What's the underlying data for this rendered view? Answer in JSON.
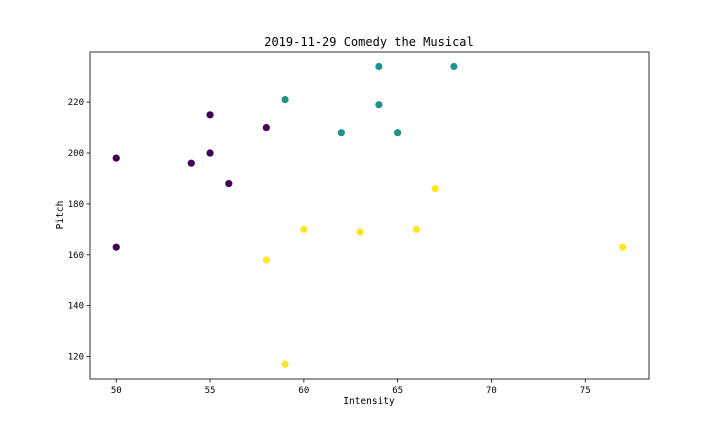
{
  "chart_data": {
    "type": "scatter",
    "title": "2019-11-29 Comedy the Musical",
    "xlabel": "Intensity",
    "ylabel": "Pitch",
    "xlim": [
      48.6,
      78.4
    ],
    "ylim": [
      111.2,
      239.7
    ],
    "xticks": [
      50,
      55,
      60,
      65,
      70,
      75
    ],
    "yticks": [
      120,
      140,
      160,
      180,
      200,
      220
    ],
    "grid": false,
    "legend": "none",
    "series": [
      {
        "color": "#440154",
        "points": [
          [
            50,
            198
          ],
          [
            50,
            163
          ],
          [
            54,
            196
          ],
          [
            55,
            215
          ],
          [
            55,
            200
          ],
          [
            56,
            188
          ],
          [
            58,
            210
          ]
        ]
      },
      {
        "color": "#21918c",
        "points": [
          [
            59,
            221
          ],
          [
            62,
            208
          ],
          [
            64,
            234
          ],
          [
            64,
            219
          ],
          [
            65,
            208
          ],
          [
            68,
            234
          ]
        ]
      },
      {
        "color": "#fde725",
        "points": [
          [
            58,
            158
          ],
          [
            59,
            117
          ],
          [
            60,
            170
          ],
          [
            63,
            169
          ],
          [
            66,
            170
          ],
          [
            67,
            186
          ],
          [
            77,
            163
          ]
        ]
      }
    ]
  }
}
